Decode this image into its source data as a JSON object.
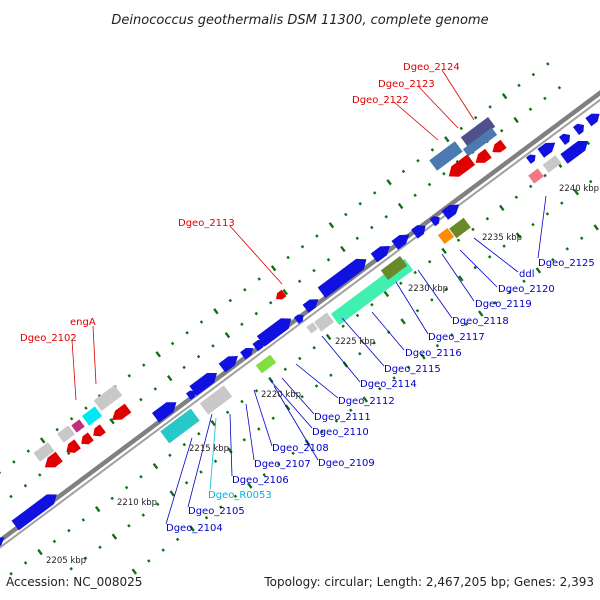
{
  "title": "Deinococcus geothermalis DSM 11300, complete genome",
  "footer": {
    "accession": "Accession: NC_008025",
    "summary": "Topology: circular; Length: 2,467,205 bp; Genes: 2,393"
  },
  "ticks": [
    "2205 kbp",
    "2210 kbp",
    "2215 kbp",
    "2220 kbp",
    "2225 kbp",
    "2230 kbp",
    "2235 kbp",
    "2240 kbp"
  ],
  "colors": {
    "forward": "#1010e0",
    "reverse": "#e00000",
    "gray": "#c8c8c8",
    "cyan": "#28c8c8",
    "teal_light": "#40f0b0",
    "olive": "#6a8a2a",
    "lime": "#80e040",
    "orange": "#ff8c00",
    "steel": "#4a7ab0",
    "purple": "#50508a",
    "pink": "#f07a8a",
    "magenta": "#c0307a",
    "aqua": "#00e8f0",
    "backbone": "#808080",
    "dots": "#107010"
  },
  "labels": {
    "red": [
      "Dgeo_2124",
      "Dgeo_2123",
      "Dgeo_2122",
      "Dgeo_2113",
      "engA",
      "Dgeo_2102"
    ],
    "blue": [
      "Dgeo_2125",
      "ddl",
      "Dgeo_2120",
      "Dgeo_2119",
      "Dgeo_2118",
      "Dgeo_2117",
      "Dgeo_2116",
      "Dgeo_2115",
      "Dgeo_2114",
      "Dgeo_2112",
      "Dgeo_2111",
      "Dgeo_2110",
      "Dgeo_2109",
      "Dgeo_2108",
      "Dgeo_2107",
      "Dgeo_2106",
      "Dgeo_2105",
      "Dgeo_2104"
    ],
    "cyan": [
      "Dgeo_R0053"
    ]
  }
}
